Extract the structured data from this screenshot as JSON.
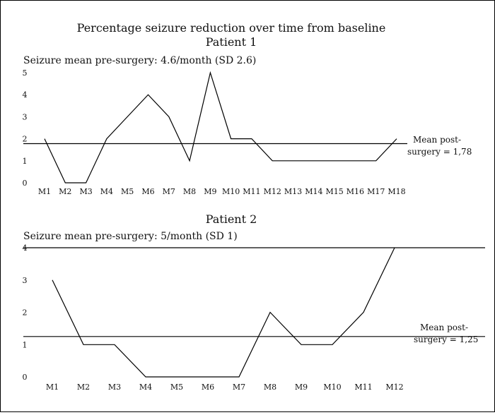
{
  "figure_title": "Percentage seizure reduction over time from baseline",
  "chart_data": [
    {
      "type": "line",
      "title": "Patient 1",
      "subtitle": "Seizure mean pre-surgery: 4.6/month (SD 2.6)",
      "categories": [
        "M1",
        "M2",
        "M3",
        "M4",
        "M5",
        "M6",
        "M7",
        "M8",
        "M9",
        "M10",
        "M11",
        "M12",
        "M13",
        "M14",
        "M15",
        "M16",
        "M17",
        "M18"
      ],
      "values": [
        2,
        0,
        0,
        2,
        3,
        4,
        3,
        1,
        5,
        2,
        2,
        1,
        1,
        1,
        1,
        1,
        1,
        2
      ],
      "yticks": [
        "0",
        "1",
        "2",
        "3",
        "4",
        "5"
      ],
      "ylim": [
        0,
        5
      ],
      "mean_value": 1.78,
      "mean_label_line1": "Mean post-",
      "mean_label_line2": "surgery = 1,78"
    },
    {
      "type": "line",
      "title": "Patient 2",
      "subtitle": "Seizure mean pre-surgery: 5/month (SD 1)",
      "categories": [
        "M1",
        "M2",
        "M3",
        "M4",
        "M5",
        "M6",
        "M7",
        "M8",
        "M9",
        "M10",
        "M11",
        "M12"
      ],
      "values": [
        3,
        1,
        1,
        0,
        0,
        0,
        0,
        2,
        1,
        1,
        2,
        4
      ],
      "yticks": [
        "0",
        "1",
        "2",
        "3",
        "4"
      ],
      "ylim": [
        0,
        4
      ],
      "mean_value": 1.25,
      "mean_label_line1": "Mean post-",
      "mean_label_line2": "surgery = 1,25"
    }
  ]
}
